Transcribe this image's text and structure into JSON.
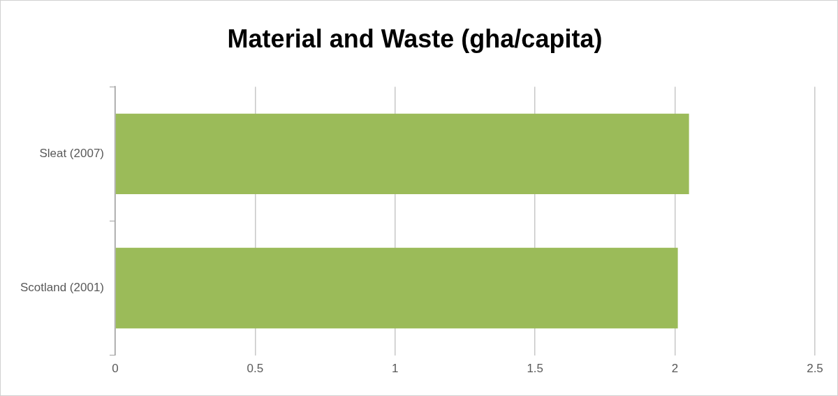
{
  "chart_data": {
    "type": "bar",
    "title": "Material and Waste (gha/capita)",
    "orientation": "horizontal",
    "categories": [
      "Sleat (2007)",
      "Scotland (2001)"
    ],
    "values": [
      2.05,
      2.01
    ],
    "color": "#9bbb59",
    "xlim": [
      0,
      2.5
    ],
    "xticks": [
      0,
      0.5,
      1,
      1.5,
      2,
      2.5
    ],
    "grid": "x",
    "legend": false
  }
}
